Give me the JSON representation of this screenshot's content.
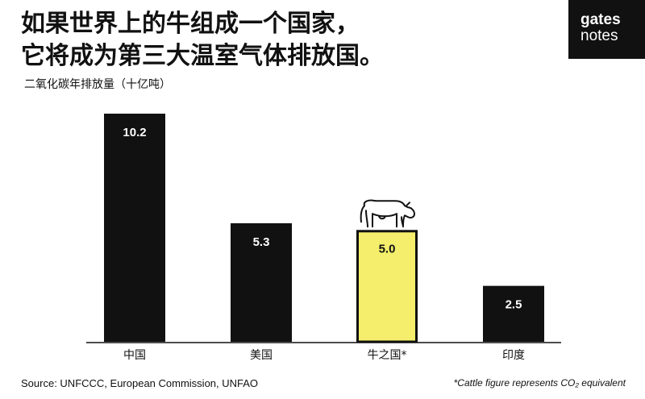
{
  "title_lines": [
    "如果世界上的牛组成一个国家，",
    "它将成为第三大温室气体排放国。"
  ],
  "unit_label": "二氧化碳年排放量（十亿吨）",
  "logo": {
    "line1": "gates",
    "line2": "notes"
  },
  "source": "Source: UNFCCC, European Commission, UNFAO",
  "footnote": "*Cattle figure represents CO₂ equivalent",
  "colors": {
    "bar": "#111111",
    "highlight": "#f4ee6c",
    "highlight_border": "#111111",
    "label_text": "#ffffff",
    "highlight_label_text": "#111111"
  },
  "icons": {
    "highlight_topper": "cow-icon"
  },
  "chart_data": {
    "type": "bar",
    "categories": [
      "中国",
      "美国",
      "牛之国*",
      "印度"
    ],
    "values": [
      10.2,
      5.3,
      5.0,
      2.5
    ],
    "highlight_index": 2,
    "title": "如果世界上的牛组成一个国家，它将成为第三大温室气体排放国。",
    "ylabel": "二氧化碳年排放量（十亿吨）",
    "xlabel": "",
    "ylim": [
      0,
      10.2
    ],
    "grid": false,
    "legend": "none"
  }
}
